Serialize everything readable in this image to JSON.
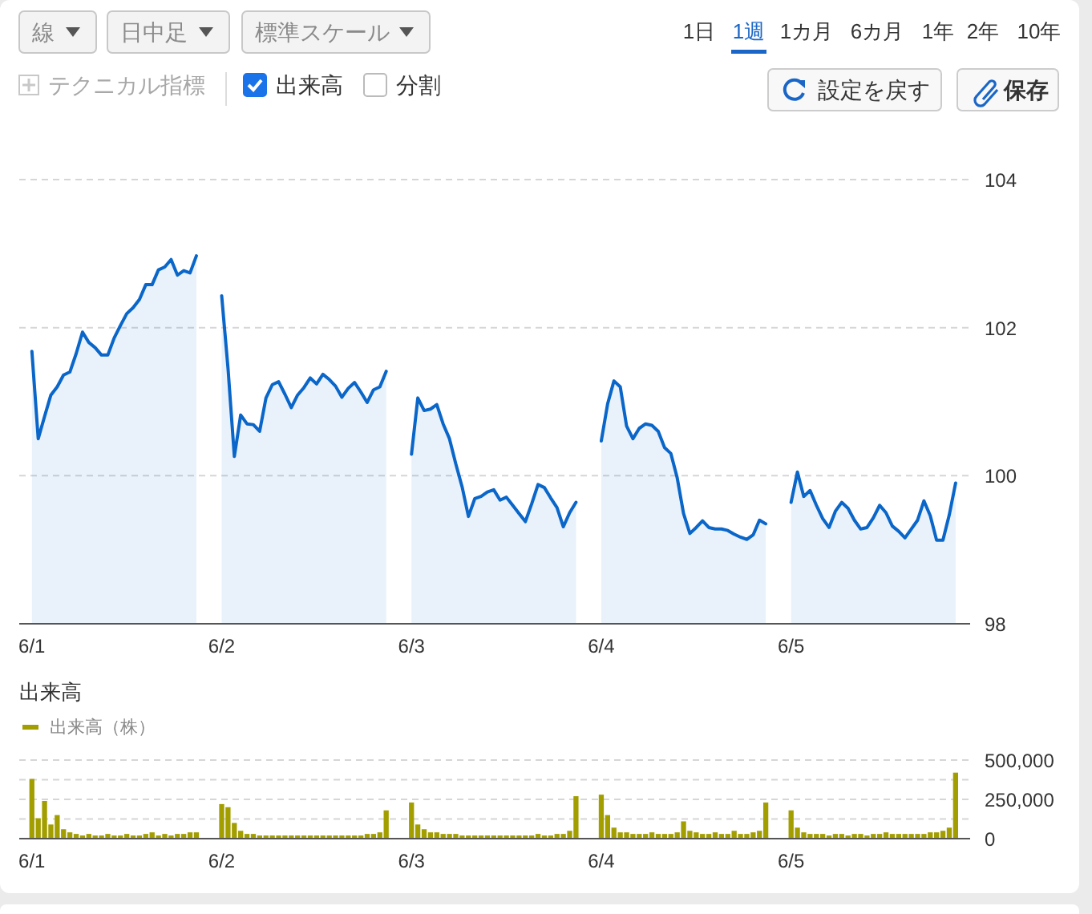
{
  "chart_data": [
    {
      "type": "other",
      "annotations": [
        "線",
        "日中足",
        "標準スケール",
        "1日",
        "1週",
        "1カ月",
        "6カ月",
        "1年",
        "2年",
        "10年",
        "テクニカル指標",
        "出来高",
        "分割",
        "設定を戻す",
        "保存"
      ]
    },
    {
      "type": "area",
      "ylim": [
        98,
        104
      ],
      "yticks": [
        98,
        100,
        102,
        104
      ],
      "grid": "y",
      "legend": false,
      "categories": [
        "6/1",
        null,
        null,
        null,
        null,
        null,
        null,
        null,
        null,
        null,
        null,
        null,
        null,
        null,
        null,
        null,
        null,
        null,
        null,
        null,
        null,
        null,
        null,
        null,
        null,
        null,
        null,
        null,
        null,
        null,
        "6/2",
        null,
        null,
        null,
        null,
        null,
        null,
        null,
        null,
        null,
        null,
        null,
        null,
        null,
        null,
        null,
        null,
        null,
        null,
        null,
        null,
        null,
        null,
        null,
        null,
        null,
        null,
        null,
        null,
        null,
        "6/3",
        null,
        null,
        null,
        null,
        null,
        null,
        null,
        null,
        null,
        null,
        null,
        null,
        null,
        null,
        null,
        null,
        null,
        null,
        null,
        null,
        null,
        null,
        null,
        null,
        null,
        null,
        null,
        null,
        null,
        "6/4",
        null,
        null,
        null,
        null,
        null,
        null,
        null,
        null,
        null,
        null,
        null,
        null,
        null,
        null,
        null,
        null,
        null,
        null,
        null,
        null,
        null,
        null,
        null,
        null,
        null,
        null,
        null,
        null,
        null,
        "6/5",
        null,
        null,
        null,
        null,
        null,
        null,
        null,
        null,
        null,
        null,
        null,
        null,
        null,
        null,
        null,
        null,
        null,
        null,
        null,
        null,
        null,
        null,
        null,
        null,
        null,
        null
      ],
      "series": [
        {
          "color": "#0a66c8",
          "values": [
            101.68,
            100.5,
            100.8,
            101.09,
            101.2,
            101.36,
            101.4,
            101.65,
            101.94,
            101.8,
            101.73,
            101.63,
            101.63,
            101.86,
            102.03,
            102.19,
            102.27,
            102.38,
            102.58,
            102.58,
            102.78,
            102.82,
            102.92,
            102.71,
            102.77,
            102.74,
            102.97,
            null,
            null,
            null,
            102.43,
            101.45,
            100.26,
            100.82,
            100.7,
            100.69,
            100.6,
            101.05,
            101.23,
            101.27,
            101.1,
            100.92,
            101.09,
            101.19,
            101.32,
            101.24,
            101.37,
            101.3,
            101.21,
            101.06,
            101.18,
            101.26,
            101.13,
            100.99,
            101.16,
            101.2,
            101.41,
            null,
            null,
            null,
            100.29,
            101.05,
            100.88,
            100.9,
            100.96,
            100.7,
            100.5,
            100.16,
            99.85,
            99.45,
            99.69,
            99.72,
            99.78,
            99.81,
            99.67,
            99.71,
            99.6,
            99.49,
            99.38,
            99.62,
            99.88,
            99.84,
            99.7,
            99.57,
            99.31,
            99.5,
            99.64,
            null,
            null,
            null,
            100.47,
            100.97,
            101.28,
            101.2,
            100.67,
            100.5,
            100.64,
            100.7,
            100.68,
            100.6,
            100.38,
            100.3,
            99.97,
            99.49,
            99.22,
            99.3,
            99.39,
            99.3,
            99.28,
            99.28,
            99.26,
            99.21,
            99.17,
            99.14,
            99.2,
            99.4,
            99.35,
            null,
            null,
            null,
            99.64,
            100.05,
            99.72,
            99.8,
            99.6,
            99.42,
            99.3,
            99.52,
            99.64,
            99.56,
            99.4,
            99.28,
            99.3,
            99.43,
            99.6,
            99.5,
            99.32,
            99.25,
            99.16,
            99.28,
            99.4,
            99.66,
            99.46,
            99.13,
            99.13,
            99.47,
            99.9
          ]
        }
      ]
    },
    {
      "type": "bar",
      "title": "出来高",
      "ylim": [
        0,
        500000
      ],
      "yticks": [
        0,
        {
          "value": 125000,
          "label": null
        },
        {
          "value": 250000,
          "label": "250,000"
        },
        {
          "value": 375000,
          "label": null
        },
        {
          "value": 500000,
          "label": "500,000"
        }
      ],
      "grid": "y",
      "legend": "top left",
      "categories": [
        "6/1",
        null,
        null,
        null,
        null,
        null,
        null,
        null,
        null,
        null,
        null,
        null,
        null,
        null,
        null,
        null,
        null,
        null,
        null,
        null,
        null,
        null,
        null,
        null,
        null,
        null,
        null,
        null,
        null,
        null,
        "6/2",
        null,
        null,
        null,
        null,
        null,
        null,
        null,
        null,
        null,
        null,
        null,
        null,
        null,
        null,
        null,
        null,
        null,
        null,
        null,
        null,
        null,
        null,
        null,
        null,
        null,
        null,
        null,
        null,
        null,
        "6/3",
        null,
        null,
        null,
        null,
        null,
        null,
        null,
        null,
        null,
        null,
        null,
        null,
        null,
        null,
        null,
        null,
        null,
        null,
        null,
        null,
        null,
        null,
        null,
        null,
        null,
        null,
        null,
        null,
        null,
        "6/4",
        null,
        null,
        null,
        null,
        null,
        null,
        null,
        null,
        null,
        null,
        null,
        null,
        null,
        null,
        null,
        null,
        null,
        null,
        null,
        null,
        null,
        null,
        null,
        null,
        null,
        null,
        null,
        null,
        null,
        "6/5",
        null,
        null,
        null,
        null,
        null,
        null,
        null,
        null,
        null,
        null,
        null,
        null,
        null,
        null,
        null,
        null,
        null,
        null,
        null,
        null,
        null,
        null,
        null,
        null,
        null,
        null
      ],
      "series": [
        {
          "name": "出来高（株）",
          "color": "#a39e00",
          "values": [
            380000,
            130000,
            240000,
            90000,
            150000,
            60000,
            40000,
            30000,
            20000,
            30000,
            20000,
            20000,
            30000,
            20000,
            20000,
            30000,
            20000,
            20000,
            30000,
            40000,
            20000,
            30000,
            20000,
            30000,
            30000,
            40000,
            40000,
            null,
            null,
            null,
            220000,
            200000,
            100000,
            50000,
            30000,
            30000,
            20000,
            20000,
            20000,
            20000,
            20000,
            20000,
            20000,
            20000,
            20000,
            20000,
            20000,
            20000,
            20000,
            20000,
            20000,
            20000,
            20000,
            30000,
            30000,
            40000,
            180000,
            null,
            null,
            null,
            230000,
            90000,
            60000,
            40000,
            40000,
            30000,
            30000,
            30000,
            20000,
            20000,
            20000,
            20000,
            20000,
            20000,
            20000,
            20000,
            20000,
            20000,
            20000,
            20000,
            30000,
            20000,
            20000,
            30000,
            30000,
            50000,
            270000,
            null,
            null,
            null,
            280000,
            150000,
            70000,
            40000,
            40000,
            30000,
            30000,
            30000,
            40000,
            30000,
            30000,
            30000,
            40000,
            110000,
            50000,
            40000,
            30000,
            30000,
            40000,
            30000,
            30000,
            50000,
            30000,
            30000,
            40000,
            50000,
            230000,
            null,
            null,
            null,
            180000,
            70000,
            40000,
            30000,
            30000,
            30000,
            20000,
            30000,
            30000,
            20000,
            30000,
            30000,
            20000,
            30000,
            30000,
            40000,
            30000,
            30000,
            30000,
            30000,
            30000,
            30000,
            40000,
            40000,
            50000,
            70000,
            420000
          ]
        }
      ]
    }
  ]
}
